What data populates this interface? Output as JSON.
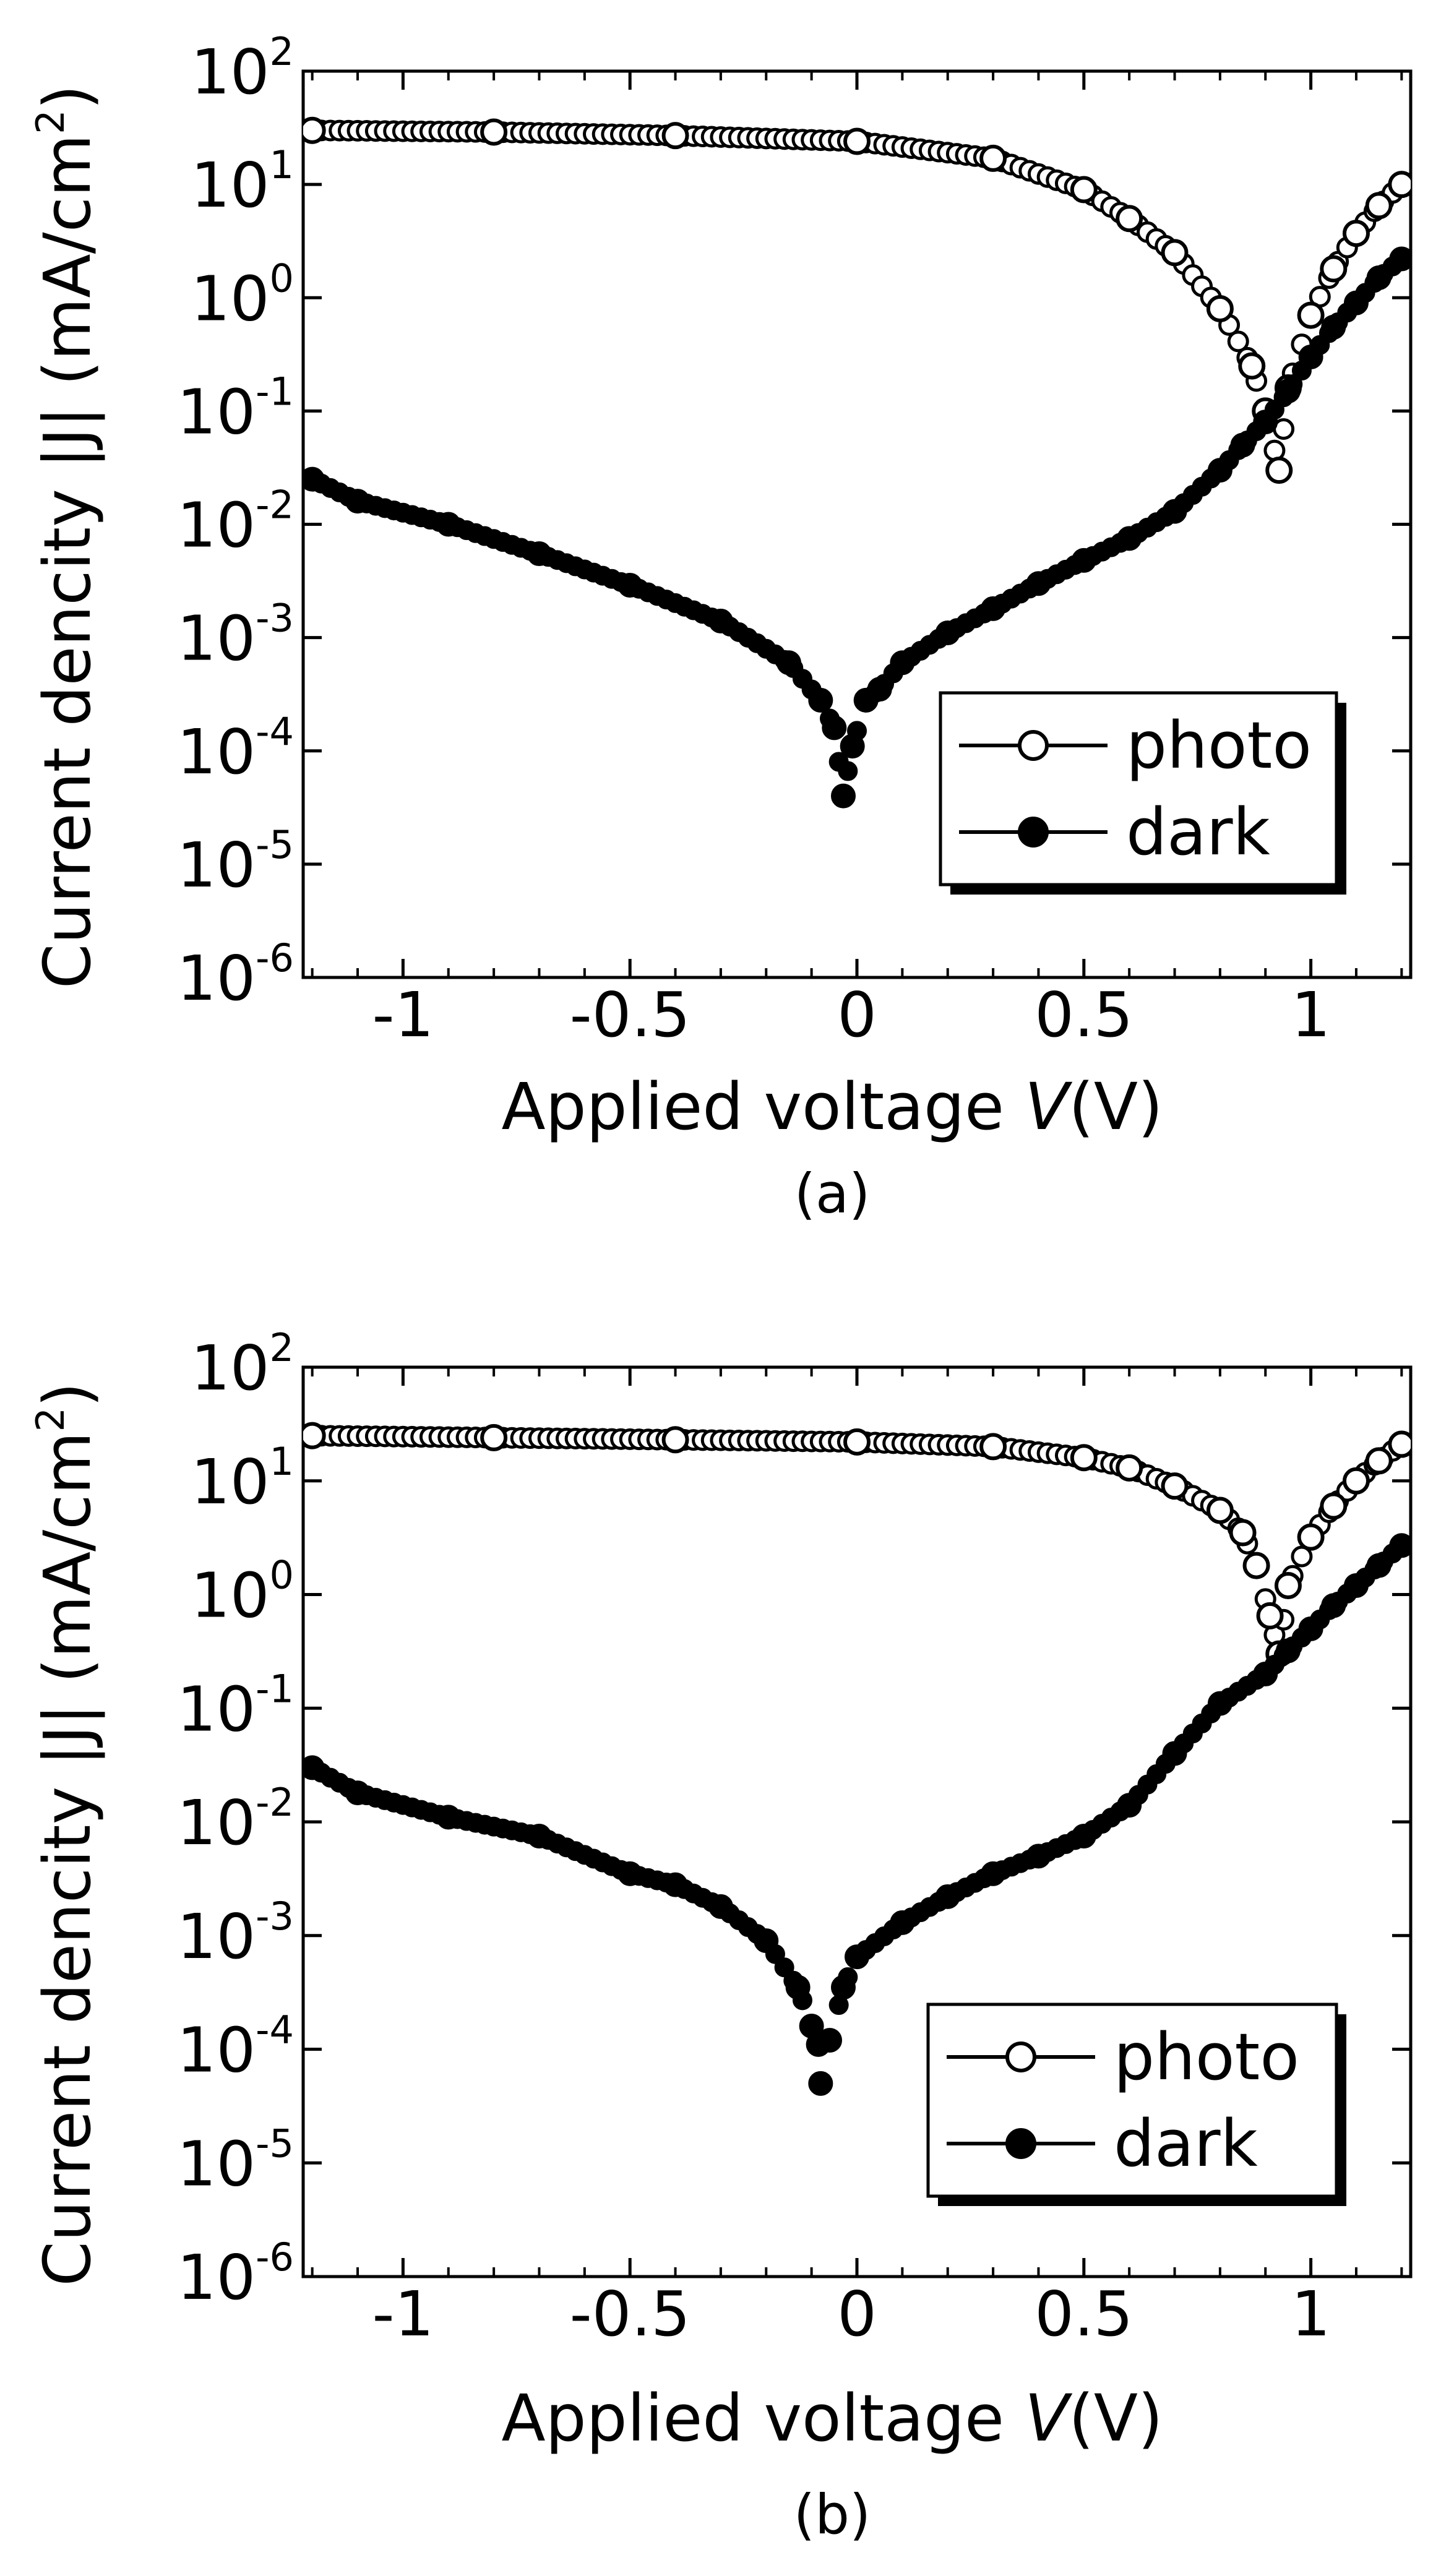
{
  "colors": {
    "ink": "#000000",
    "background": "#ffffff"
  },
  "chart_data": [
    {
      "type": "scatter",
      "panel_label": "(a)",
      "xlabel": "Applied voltage",
      "xlabel_symbol": "V",
      "xlabel_unit": "(V)",
      "ylabel": "Current dencity |J| (mA/cm",
      "ylabel_exp": "2",
      "ylabel_close": ")",
      "y_scale": "log",
      "xlim": [
        -1.22,
        1.22
      ],
      "ylim_exponents": [
        -6,
        2
      ],
      "x_ticks": [
        -1,
        -0.5,
        0,
        0.5,
        1
      ],
      "x_tick_labels": [
        "-1",
        "-0.5",
        "0",
        "0.5",
        "1"
      ],
      "y_ticks_exponents": [
        2,
        1,
        0,
        -1,
        -2,
        -3,
        -4,
        -5,
        -6
      ],
      "y_tick_base": "10",
      "y_tick_exps": [
        "2",
        "1",
        "0",
        "-1",
        "-2",
        "-3",
        "-4",
        "-5",
        "-6"
      ],
      "legend_position": "bottom-right",
      "series": [
        {
          "name": "photo",
          "marker": "open-circle",
          "knots": [
            [
              -1.2,
              30
            ],
            [
              -0.8,
              29
            ],
            [
              -0.4,
              27
            ],
            [
              0,
              24
            ],
            [
              0.3,
              17
            ],
            [
              0.5,
              9
            ],
            [
              0.6,
              5
            ],
            [
              0.7,
              2.5
            ],
            [
              0.8,
              0.8
            ],
            [
              0.87,
              0.25
            ],
            [
              0.9,
              0.1
            ],
            [
              0.93,
              0.03
            ],
            [
              0.95,
              0.16
            ],
            [
              1.0,
              0.7
            ],
            [
              1.05,
              1.8
            ],
            [
              1.1,
              3.7
            ],
            [
              1.15,
              6.5
            ],
            [
              1.2,
              10
            ]
          ]
        },
        {
          "name": "dark",
          "marker": "filled-circle",
          "knots": [
            [
              -1.2,
              0.025
            ],
            [
              -1.1,
              0.016
            ],
            [
              -0.9,
              0.01
            ],
            [
              -0.7,
              0.0055
            ],
            [
              -0.5,
              0.0029
            ],
            [
              -0.3,
              0.0014
            ],
            [
              -0.15,
              0.0006
            ],
            [
              -0.08,
              0.00028
            ],
            [
              -0.05,
              0.00016
            ],
            [
              -0.03,
              4e-05
            ],
            [
              -0.01,
              0.00011
            ],
            [
              0.02,
              0.00028
            ],
            [
              0.05,
              0.00035
            ],
            [
              0.1,
              0.0006
            ],
            [
              0.2,
              0.0011
            ],
            [
              0.3,
              0.0018
            ],
            [
              0.4,
              0.003
            ],
            [
              0.5,
              0.0048
            ],
            [
              0.6,
              0.0075
            ],
            [
              0.7,
              0.013
            ],
            [
              0.8,
              0.03
            ],
            [
              0.85,
              0.05
            ],
            [
              0.9,
              0.08
            ],
            [
              0.95,
              0.15
            ],
            [
              1.0,
              0.3
            ],
            [
              1.05,
              0.55
            ],
            [
              1.1,
              0.9
            ],
            [
              1.15,
              1.5
            ],
            [
              1.2,
              2.2
            ]
          ]
        }
      ]
    },
    {
      "type": "scatter",
      "panel_label": "(b)",
      "xlabel": "Applied voltage",
      "xlabel_symbol": "V",
      "xlabel_unit": "(V)",
      "ylabel": "Current dencity |J| (mA/cm",
      "ylabel_exp": "2",
      "ylabel_close": ")",
      "y_scale": "log",
      "xlim": [
        -1.22,
        1.22
      ],
      "ylim_exponents": [
        -6,
        2
      ],
      "x_ticks": [
        -1,
        -0.5,
        0,
        0.5,
        1
      ],
      "x_tick_labels": [
        "-1",
        "-0.5",
        "0",
        "0.5",
        "1"
      ],
      "y_ticks_exponents": [
        2,
        1,
        0,
        -1,
        -2,
        -3,
        -4,
        -5,
        -6
      ],
      "y_tick_base": "10",
      "y_tick_exps": [
        "2",
        "1",
        "0",
        "-1",
        "-2",
        "-3",
        "-4",
        "-5",
        "-6"
      ],
      "legend_position": "bottom-right",
      "series": [
        {
          "name": "photo",
          "marker": "open-circle",
          "knots": [
            [
              -1.2,
              25
            ],
            [
              -0.8,
              24
            ],
            [
              -0.4,
              23
            ],
            [
              0,
              22
            ],
            [
              0.3,
              20
            ],
            [
              0.5,
              16
            ],
            [
              0.6,
              13
            ],
            [
              0.7,
              9
            ],
            [
              0.8,
              5.5
            ],
            [
              0.85,
              3.5
            ],
            [
              0.88,
              1.8
            ],
            [
              0.91,
              0.65
            ],
            [
              0.93,
              0.3
            ],
            [
              0.95,
              1.2
            ],
            [
              1.0,
              3.2
            ],
            [
              1.05,
              6
            ],
            [
              1.1,
              10
            ],
            [
              1.15,
              15
            ],
            [
              1.2,
              21
            ]
          ]
        },
        {
          "name": "dark",
          "marker": "filled-circle",
          "knots": [
            [
              -1.2,
              0.03
            ],
            [
              -1.1,
              0.018
            ],
            [
              -0.9,
              0.011
            ],
            [
              -0.7,
              0.0075
            ],
            [
              -0.5,
              0.0035
            ],
            [
              -0.4,
              0.0028
            ],
            [
              -0.3,
              0.0018
            ],
            [
              -0.2,
              0.0009
            ],
            [
              -0.13,
              0.00035
            ],
            [
              -0.1,
              0.00016
            ],
            [
              -0.085,
              0.00011
            ],
            [
              -0.08,
              5e-05
            ],
            [
              -0.06,
              0.00012
            ],
            [
              -0.03,
              0.00035
            ],
            [
              0.0,
              0.00065
            ],
            [
              0.1,
              0.0013
            ],
            [
              0.2,
              0.0022
            ],
            [
              0.3,
              0.0035
            ],
            [
              0.4,
              0.005
            ],
            [
              0.5,
              0.0075
            ],
            [
              0.6,
              0.014
            ],
            [
              0.7,
              0.04
            ],
            [
              0.8,
              0.11
            ],
            [
              0.9,
              0.2
            ],
            [
              0.95,
              0.32
            ],
            [
              1.0,
              0.5
            ],
            [
              1.05,
              0.8
            ],
            [
              1.1,
              1.2
            ],
            [
              1.15,
              1.8
            ],
            [
              1.2,
              2.7
            ]
          ]
        }
      ]
    }
  ]
}
